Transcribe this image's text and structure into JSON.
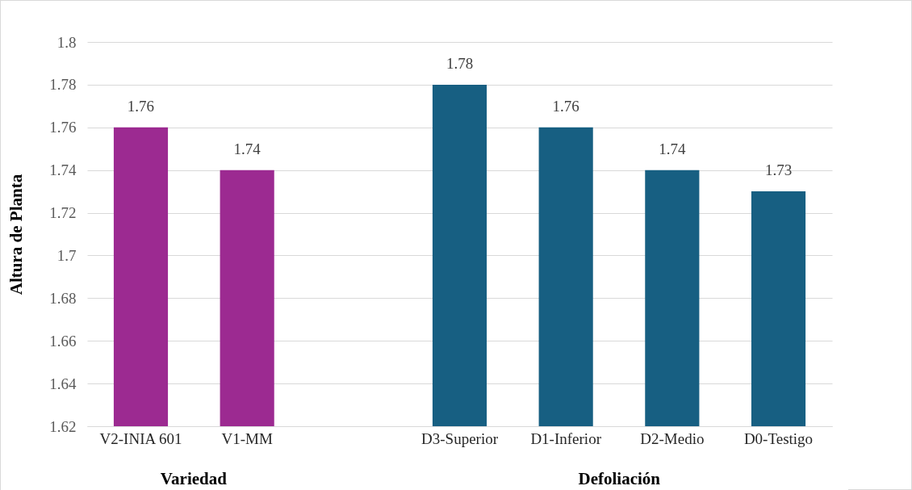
{
  "chart_data": {
    "type": "bar",
    "ylabel": "Altura de Planta",
    "categories": [
      "V2-INIA 601",
      "V1-MM",
      null,
      "D3-Superior",
      "D1-Inferior",
      "D2-Medio",
      "D0-Testigo"
    ],
    "values": [
      1.76,
      1.74,
      null,
      1.78,
      1.76,
      1.74,
      1.73
    ],
    "colors": [
      "#9c2a91",
      "#9c2a91",
      "#175f82",
      "#175f82",
      "#175f82",
      "#175f82",
      "#175f82"
    ],
    "ylim": [
      1.62,
      1.8
    ],
    "yticks": [
      1.62,
      1.64,
      1.66,
      1.68,
      1.7,
      1.72,
      1.74,
      1.76,
      1.78,
      1.8
    ],
    "grid": "y",
    "data_labels": true,
    "annotations": [
      "Variedad",
      "Defoliación"
    ]
  }
}
